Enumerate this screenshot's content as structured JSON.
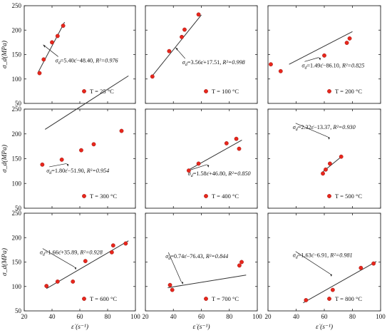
{
  "figure": {
    "y_axis_label": "σ_d(MPa)",
    "x_axis_label": "ε̇ (s⁻¹)",
    "x_ticks": [
      "20",
      "40",
      "60",
      "80",
      "100"
    ],
    "y_ticks": [
      "50",
      "100",
      "150",
      "200",
      "250"
    ],
    "marker_color": "#e8261c",
    "line_color": "#333333"
  },
  "chart_data": [
    {
      "type": "scatter",
      "legend": "T = 25 °C",
      "equation": "σd=5.40ε̇−48.40,",
      "r2": "R²=0.976",
      "slope": 5.4,
      "intercept": -48.4,
      "fit_x": [
        30,
        49
      ],
      "xlim": [
        20,
        100
      ],
      "ylim": [
        50,
        250
      ],
      "x": [
        31,
        34,
        40,
        44,
        48
      ],
      "y": [
        112,
        140,
        175,
        188,
        209
      ]
    },
    {
      "type": "scatter",
      "legend": "T = 100 °C",
      "equation": "σd=3.56ε̇+17.51,",
      "r2": "R²=0.998",
      "slope": 3.56,
      "intercept": 17.51,
      "fit_x": [
        24,
        60
      ],
      "xlim": [
        20,
        100
      ],
      "ylim": [
        50,
        250
      ],
      "x": [
        25,
        37,
        46,
        48,
        58
      ],
      "y": [
        105,
        157,
        186,
        201,
        232
      ]
    },
    {
      "type": "scatter",
      "legend": "T = 200 °C",
      "equation": "σd=1.49ε̇−86.10,",
      "r2": "R²=0.825",
      "slope": 1.49,
      "intercept": -86.1,
      "fit_x": [
        145,
        190
      ],
      "xlim": [
        130,
        210
      ],
      "ylim": [
        50,
        250
      ],
      "x": [
        132,
        139,
        170,
        186,
        188
      ],
      "y": [
        130,
        116,
        148,
        174,
        183
      ]
    },
    {
      "type": "scatter",
      "legend": "T = 300 °C",
      "equation": "σd=1.80ε̇−51.90,",
      "r2": "R²=0.954",
      "slope": 1.8,
      "intercept": -51.9,
      "fit_x": [
        145,
        205
      ],
      "xlim": [
        130,
        210
      ],
      "ylim": [
        50,
        250
      ],
      "x": [
        143,
        157,
        171,
        180,
        200
      ],
      "y": [
        138,
        148,
        167,
        179,
        206
      ]
    },
    {
      "type": "scatter",
      "legend": "T = 400 °C",
      "equation": "σd=1.58ε̇+46.80,",
      "r2": "R²=0.850",
      "slope": 1.58,
      "intercept": 46.8,
      "fit_x": [
        50,
        89
      ],
      "xlim": [
        20,
        100
      ],
      "ylim": [
        50,
        250
      ],
      "x": [
        51,
        58,
        78,
        85,
        87
      ],
      "y": [
        126,
        140,
        181,
        190,
        170
      ]
    },
    {
      "type": "scatter",
      "legend": "T = 500 °C",
      "equation": "σd=2.32ε̇−13.37,",
      "r2": "R²=0.930",
      "slope": 2.32,
      "intercept": -13.37,
      "fit_x": [
        59,
        73
      ],
      "xlim": [
        20,
        100
      ],
      "ylim": [
        50,
        250
      ],
      "x": [
        59,
        61,
        64,
        72
      ],
      "y": [
        120,
        128,
        140,
        154
      ]
    },
    {
      "type": "scatter",
      "legend": "T = 600 °C",
      "equation": "σd=1.66ε̇+35.89,",
      "r2": "R²=0.928",
      "slope": 1.66,
      "intercept": 35.89,
      "fit_x": [
        36,
        95
      ],
      "xlim": [
        20,
        100
      ],
      "ylim": [
        50,
        250
      ],
      "x": [
        36,
        44,
        55,
        64,
        83,
        84,
        93
      ],
      "y": [
        101,
        110,
        110,
        152,
        170,
        184,
        188
      ]
    },
    {
      "type": "scatter",
      "legend": "T = 700 °C",
      "equation": "σd=0.74ε̇−76.43,",
      "r2": "R²=0.844",
      "slope": 0.74,
      "intercept": -76.43,
      "fit_x": [
        235,
        270
      ],
      "xlim": [
        225,
        275
      ],
      "ylim": [
        50,
        250
      ],
      "x": [
        236,
        237,
        267,
        268
      ],
      "y": [
        103,
        93,
        143,
        150
      ]
    },
    {
      "type": "scatter",
      "legend": "T = 800 °C",
      "equation": "σd=1.63ε̇−6.91,",
      "r2": "R²=0.981",
      "slope": 1.63,
      "intercept": -6.91,
      "fit_x": [
        45,
        97
      ],
      "xlim": [
        20,
        100
      ],
      "ylim": [
        50,
        250
      ],
      "x": [
        47,
        66,
        86,
        95
      ],
      "y": [
        72,
        93,
        138,
        147
      ]
    }
  ]
}
